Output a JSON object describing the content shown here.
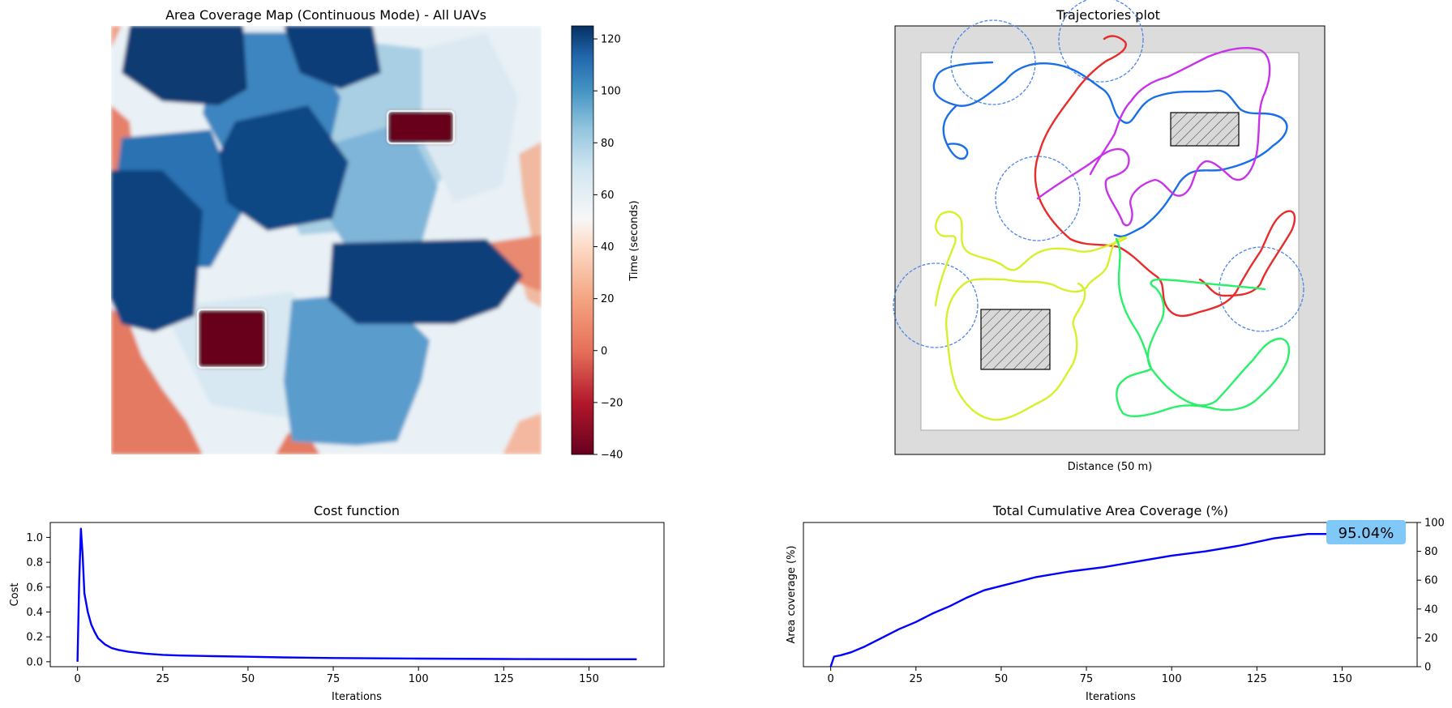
{
  "chart_data": [
    {
      "type": "heatmap",
      "title": "Area Coverage Map (Continuous Mode) - All UAVs",
      "colorbar": {
        "label": "Time (seconds)",
        "range": [
          -40,
          125
        ],
        "ticks": [
          -40,
          -20,
          0,
          20,
          40,
          60,
          80,
          100,
          120
        ],
        "tick_labels": [
          "−40",
          "−20",
          "0",
          "20",
          "40",
          "60",
          "80",
          "100",
          "120"
        ],
        "colormap": "RdBu"
      },
      "grid": false,
      "axes_visible": false
    },
    {
      "type": "line",
      "title": "Trajectories plot",
      "xlabel": "Distance  (50 m)",
      "ylabel": "",
      "axes_ticks_visible": false,
      "legend": "none",
      "series": [
        {
          "color": "#1a6fe8"
        },
        {
          "color": "#e82b2b"
        },
        {
          "color": "#c832e8"
        },
        {
          "color": "#d8f02a"
        },
        {
          "color": "#2af06a"
        }
      ],
      "circle_color": "#4a86e8",
      "obstacle_fill": "#d8d8d8"
    },
    {
      "type": "line",
      "title": "Cost function",
      "xlabel": "Iterations",
      "ylabel": "Cost",
      "xlim": [
        -8,
        172
      ],
      "ylim": [
        -0.04,
        1.12
      ],
      "xticks": [
        0,
        25,
        50,
        75,
        100,
        125,
        150
      ],
      "yticks": [
        0.0,
        0.2,
        0.4,
        0.6,
        0.8,
        1.0
      ],
      "ytick_labels": [
        "0.0",
        "0.2",
        "0.4",
        "0.6",
        "0.8",
        "1.0"
      ],
      "series": [
        {
          "color": "#0000ff",
          "x": [
            0,
            0.5,
            1,
            1.5,
            2,
            3,
            4,
            5,
            6,
            8,
            10,
            12,
            15,
            20,
            25,
            30,
            40,
            50,
            60,
            75,
            100,
            125,
            150,
            164
          ],
          "values": [
            0.0,
            0.65,
            1.07,
            0.85,
            0.55,
            0.4,
            0.3,
            0.24,
            0.19,
            0.14,
            0.11,
            0.095,
            0.08,
            0.065,
            0.055,
            0.05,
            0.045,
            0.04,
            0.035,
            0.03,
            0.025,
            0.022,
            0.02,
            0.02
          ]
        }
      ]
    },
    {
      "type": "line",
      "title": "Total Cumulative Area Coverage (%)",
      "xlabel": "Iterations",
      "ylabel": "Area coverage (%)",
      "xlim": [
        -8,
        172
      ],
      "ylim": [
        0,
        100
      ],
      "xticks": [
        0,
        25,
        50,
        75,
        100,
        125,
        150
      ],
      "yticks": [
        0,
        20,
        40,
        60,
        80,
        100
      ],
      "y_axis_side": "right",
      "annotation": {
        "text": "95.04%",
        "background": "#7fc8f8"
      },
      "series": [
        {
          "color": "#0000ff",
          "x": [
            0,
            1,
            3,
            6,
            10,
            15,
            20,
            25,
            30,
            35,
            40,
            45,
            50,
            55,
            60,
            70,
            80,
            90,
            100,
            110,
            120,
            130,
            140,
            147
          ],
          "values": [
            0,
            7,
            8,
            10,
            14,
            20,
            26,
            31,
            37,
            42,
            48,
            53,
            56,
            59,
            62,
            66,
            69,
            73,
            77,
            80,
            84,
            89,
            92,
            92
          ]
        }
      ]
    }
  ]
}
